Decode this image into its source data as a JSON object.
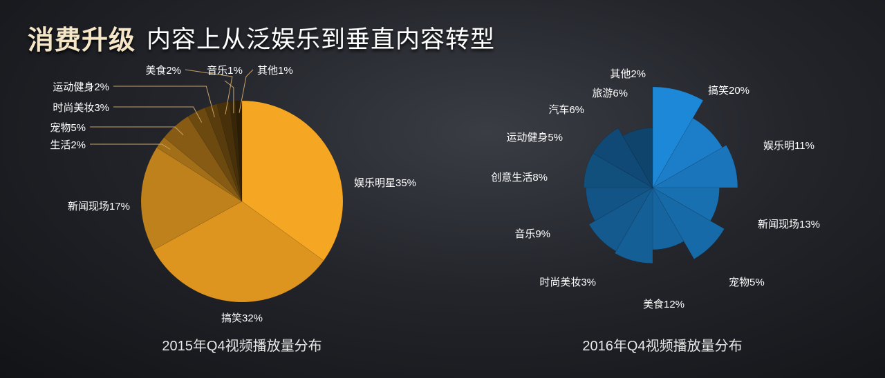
{
  "header": {
    "title_main": "消费升级",
    "title_sub": "内容上从泛娱乐到垂直内容转型"
  },
  "chart_data": [
    {
      "type": "pie",
      "title": "2015年Q4视频播放量分布",
      "color": "#f5a623",
      "slices": [
        {
          "label": "娱乐明星35%",
          "value": 35
        },
        {
          "label": "搞笑32%",
          "value": 32
        },
        {
          "label": "新闻现场17%",
          "value": 17
        },
        {
          "label": "生活2%",
          "value": 2
        },
        {
          "label": "宠物5%",
          "value": 5
        },
        {
          "label": "时尚美妆3%",
          "value": 3
        },
        {
          "label": "运动健身2%",
          "value": 2
        },
        {
          "label": "美食2%",
          "value": 2
        },
        {
          "label": "音乐1%",
          "value": 1
        },
        {
          "label": "其他1%",
          "value": 1
        }
      ]
    },
    {
      "type": "pie",
      "title": "2016年Q4视频播放量分布",
      "color": "#1e88d8",
      "slices": [
        {
          "label": "搞笑20%",
          "value": 20
        },
        {
          "label": "娱乐明11%",
          "value": 11
        },
        {
          "label": "新闻现场13%",
          "value": 13
        },
        {
          "label": "宠物5%",
          "value": 5
        },
        {
          "label": "美食12%",
          "value": 12
        },
        {
          "label": "时尚美妆3%",
          "value": 3
        },
        {
          "label": "音乐9%",
          "value": 9
        },
        {
          "label": "创意生活8%",
          "value": 8
        },
        {
          "label": "运动健身5%",
          "value": 5
        },
        {
          "label": "汽车6%",
          "value": 6
        },
        {
          "label": "旅游6%",
          "value": 6
        },
        {
          "label": "其他2%",
          "value": 2
        }
      ]
    }
  ]
}
